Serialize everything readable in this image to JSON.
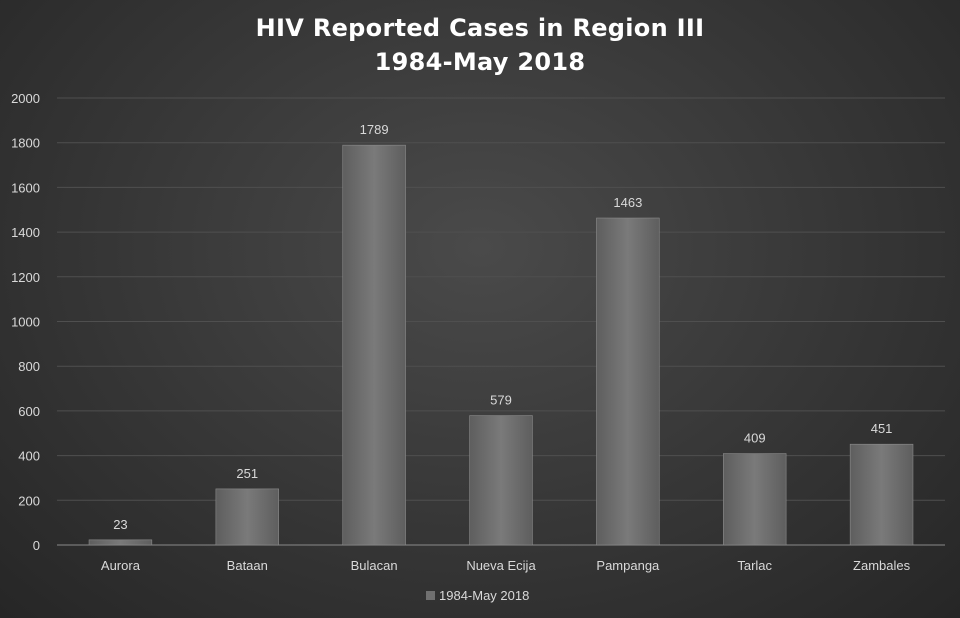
{
  "chart_data": {
    "type": "bar",
    "title": "HIV Reported Cases in Region III",
    "subtitle": "1984-May 2018",
    "xlabel": "",
    "ylabel": "",
    "ylim": [
      0,
      2000
    ],
    "yticks": [
      0,
      200,
      400,
      600,
      800,
      1000,
      1200,
      1400,
      1600,
      1800,
      2000
    ],
    "grid": true,
    "legend_position": "bottom",
    "categories": [
      "Aurora",
      "Bataan",
      "Bulacan",
      "Nueva Ecija",
      "Pampanga",
      "Tarlac",
      "Zambales"
    ],
    "series": [
      {
        "name": "1984-May 2018",
        "values": [
          23,
          251,
          1789,
          579,
          1463,
          409,
          451
        ],
        "color": "#6f6f6f"
      }
    ]
  }
}
